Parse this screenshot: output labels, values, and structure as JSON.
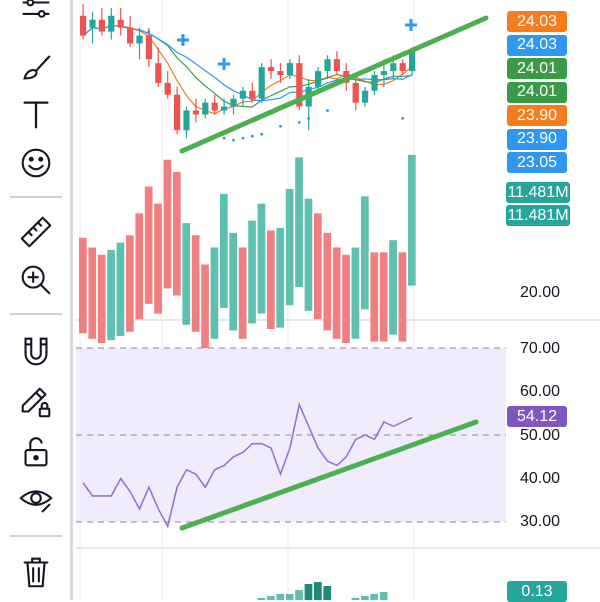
{
  "toolbar": {
    "items": [
      {
        "name": "chart-settings-icon"
      },
      {
        "name": "brush-icon"
      },
      {
        "name": "text-icon"
      },
      {
        "name": "emoji-icon"
      },
      {
        "name": "ruler-icon"
      },
      {
        "name": "zoom-in-icon"
      },
      {
        "name": "magnet-icon"
      },
      {
        "name": "pencil-lock-icon"
      },
      {
        "name": "unlock-icon"
      },
      {
        "name": "eye-icon"
      },
      {
        "name": "trash-icon"
      }
    ]
  },
  "price_tags": [
    {
      "label": "24.03",
      "color": "#f57c1f"
    },
    {
      "label": "24.03",
      "color": "#2f97ef"
    },
    {
      "label": "24.01",
      "color": "#3a9a47"
    },
    {
      "label": "24.01",
      "color": "#3a9a47"
    },
    {
      "label": "23.90",
      "color": "#f57c1f"
    },
    {
      "label": "23.90",
      "color": "#2f97ef"
    },
    {
      "label": "23.05",
      "color": "#2f97ef"
    }
  ],
  "volume_tags": [
    {
      "label": "11.481M",
      "color": "#26a69a"
    },
    {
      "label": "11.481M",
      "color": "#26a69a"
    }
  ],
  "volume_axis": {
    "label": "20.00"
  },
  "rsi_axis": {
    "labels": [
      "70.00",
      "60.00",
      "50.00",
      "40.00",
      "30.00"
    ]
  },
  "rsi_tag": {
    "label": "54.12",
    "color": "#7e57c2"
  },
  "osc_tag": {
    "label": "0.13",
    "color": "#26a69a"
  },
  "colors": {
    "up": "#26a69a",
    "down": "#ef5350",
    "trendline": "#4caf50",
    "rsi_line": "#9575cd",
    "rsi_band": "#f1ecfb"
  },
  "chart_data": {
    "type": "candlestick",
    "candles": [
      {
        "o": 26.4,
        "h": 26.7,
        "l": 25.8,
        "c": 25.9
      },
      {
        "o": 26.1,
        "h": 26.5,
        "l": 25.7,
        "c": 26.3
      },
      {
        "o": 26.3,
        "h": 26.6,
        "l": 25.9,
        "c": 26.0
      },
      {
        "o": 26.0,
        "h": 26.6,
        "l": 25.8,
        "c": 26.4
      },
      {
        "o": 26.3,
        "h": 26.6,
        "l": 25.9,
        "c": 26.1
      },
      {
        "o": 26.1,
        "h": 26.4,
        "l": 25.6,
        "c": 25.7
      },
      {
        "o": 25.7,
        "h": 26.1,
        "l": 25.3,
        "c": 25.9
      },
      {
        "o": 25.9,
        "h": 26.1,
        "l": 25.1,
        "c": 25.3
      },
      {
        "o": 25.2,
        "h": 25.6,
        "l": 24.6,
        "c": 24.7
      },
      {
        "o": 24.7,
        "h": 25.0,
        "l": 24.3,
        "c": 24.4
      },
      {
        "o": 24.4,
        "h": 24.6,
        "l": 23.4,
        "c": 23.5
      },
      {
        "o": 23.5,
        "h": 24.1,
        "l": 23.3,
        "c": 24.0
      },
      {
        "o": 24.0,
        "h": 24.3,
        "l": 23.7,
        "c": 23.9
      },
      {
        "o": 23.9,
        "h": 24.3,
        "l": 23.8,
        "c": 24.2
      },
      {
        "o": 24.2,
        "h": 24.4,
        "l": 23.9,
        "c": 24.0
      },
      {
        "o": 24.0,
        "h": 24.3,
        "l": 23.9,
        "c": 24.1
      },
      {
        "o": 24.1,
        "h": 24.4,
        "l": 23.9,
        "c": 24.3
      },
      {
        "o": 24.3,
        "h": 24.6,
        "l": 24.1,
        "c": 24.5
      },
      {
        "o": 24.5,
        "h": 24.7,
        "l": 24.2,
        "c": 24.3
      },
      {
        "o": 24.3,
        "h": 25.2,
        "l": 24.2,
        "c": 25.1
      },
      {
        "o": 25.1,
        "h": 25.3,
        "l": 24.8,
        "c": 25.0
      },
      {
        "o": 25.0,
        "h": 25.2,
        "l": 24.7,
        "c": 24.9
      },
      {
        "o": 24.9,
        "h": 25.3,
        "l": 24.8,
        "c": 25.2
      },
      {
        "o": 25.2,
        "h": 25.4,
        "l": 24.0,
        "c": 24.1
      },
      {
        "o": 24.1,
        "h": 24.8,
        "l": 23.5,
        "c": 24.6
      },
      {
        "o": 24.6,
        "h": 25.1,
        "l": 24.5,
        "c": 25.0
      },
      {
        "o": 25.0,
        "h": 25.4,
        "l": 24.8,
        "c": 25.3
      },
      {
        "o": 25.3,
        "h": 25.5,
        "l": 24.9,
        "c": 25.0
      },
      {
        "o": 25.0,
        "h": 25.2,
        "l": 24.5,
        "c": 24.7
      },
      {
        "o": 24.7,
        "h": 24.9,
        "l": 24.0,
        "c": 24.2
      },
      {
        "o": 24.2,
        "h": 24.6,
        "l": 24.1,
        "c": 24.5
      },
      {
        "o": 24.5,
        "h": 25.0,
        "l": 24.4,
        "c": 24.9
      },
      {
        "o": 24.9,
        "h": 25.3,
        "l": 24.6,
        "c": 25.0
      },
      {
        "o": 25.0,
        "h": 25.4,
        "l": 24.8,
        "c": 25.2
      },
      {
        "o": 25.2,
        "h": 25.3,
        "l": 24.9,
        "c": 25.0
      },
      {
        "o": 25.0,
        "h": 25.6,
        "l": 24.9,
        "c": 25.5
      }
    ],
    "volume": [
      9.2,
      8.8,
      8.5,
      8.7,
      9.0,
      9.3,
      10.2,
      11.3,
      10.6,
      12.4,
      11.9,
      9.8,
      9.3,
      8.1,
      8.8,
      11.0,
      9.4,
      8.8,
      9.9,
      10.6,
      9.5,
      9.6,
      11.2,
      12.5,
      10.8,
      10.2,
      9.4,
      8.8,
      8.5,
      8.8,
      10.9,
      8.6,
      8.6,
      9.1,
      8.6,
      12.6
    ],
    "volume_up": [
      false,
      false,
      false,
      true,
      true,
      false,
      false,
      false,
      false,
      false,
      false,
      true,
      false,
      false,
      true,
      true,
      true,
      false,
      true,
      true,
      false,
      true,
      true,
      true,
      true,
      false,
      false,
      false,
      false,
      true,
      true,
      false,
      false,
      true,
      false,
      true
    ],
    "rsi": [
      39,
      36,
      36,
      36,
      40,
      37,
      33,
      38,
      33,
      29,
      38,
      42,
      41,
      38,
      42,
      43,
      45,
      46,
      48,
      48,
      47,
      41,
      47,
      57,
      52,
      47,
      44,
      43,
      45,
      49,
      50,
      49,
      53,
      52,
      53,
      54
    ],
    "rsi_band": [
      30,
      70
    ]
  }
}
